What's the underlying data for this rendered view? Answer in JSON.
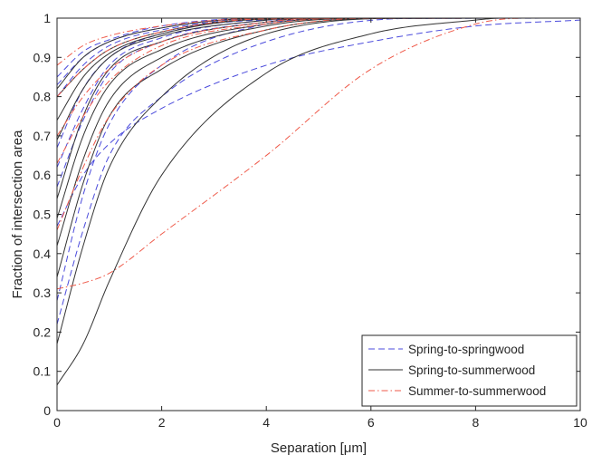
{
  "chart_data": {
    "type": "line",
    "title": "",
    "xlabel": "Separation [μm]",
    "ylabel": "Fraction of intersection area",
    "xlim": [
      0,
      10
    ],
    "ylim": [
      0,
      1
    ],
    "xticks": [
      0,
      2,
      4,
      6,
      8,
      10
    ],
    "yticks": [
      0,
      0.1,
      0.2,
      0.3,
      0.4,
      0.5,
      0.6,
      0.7,
      0.8,
      0.9,
      1
    ],
    "xtick_labels": [
      "0",
      "2",
      "4",
      "6",
      "8",
      "10"
    ],
    "ytick_labels": [
      "0",
      "0.1",
      "0.2",
      "0.3",
      "0.4",
      "0.5",
      "0.6",
      "0.7",
      "0.8",
      "0.9",
      "1"
    ],
    "grid": false,
    "box": true,
    "legend_position": "bottom-right",
    "groups": [
      {
        "name": "Spring-to-springwood",
        "color": "#4b4bdc",
        "line_style": "dashed",
        "curves": [
          {
            "y0": 0.85,
            "y05": 0.915,
            "y1": 0.945,
            "y2": 0.98,
            "y4": 1.0,
            "xend": 3.5
          },
          {
            "y0": 0.83,
            "y05": 0.9,
            "y1": 0.94,
            "y2": 0.975,
            "y4": 1.0,
            "xend": 3.5
          },
          {
            "y0": 0.8,
            "y05": 0.88,
            "y1": 0.93,
            "y2": 0.97,
            "y4": 0.998,
            "xend": 3.5
          },
          {
            "y0": 0.67,
            "y05": 0.82,
            "y1": 0.9,
            "y2": 0.96,
            "y4": 0.995,
            "xend": 4.0
          },
          {
            "y0": 0.62,
            "y05": 0.77,
            "y1": 0.88,
            "y2": 0.95,
            "y4": 0.995,
            "xend": 4.5
          },
          {
            "y0": 0.57,
            "y05": 0.74,
            "y1": 0.86,
            "y2": 0.94,
            "y4": 0.99,
            "xend": 5.0
          },
          {
            "y0": 0.28,
            "y05": 0.55,
            "y1": 0.73,
            "y2": 0.88,
            "y4": 0.985,
            "xend": 5.5
          },
          {
            "y0": 0.22,
            "y05": 0.46,
            "y1": 0.65,
            "y2": 0.8,
            "y4": 0.94,
            "xend": 7.0
          },
          {
            "y0": 0.47,
            "y05": 0.6,
            "y1": 0.68,
            "y2": 0.77,
            "y4": 0.88,
            "y6": 0.94,
            "y8": 0.98,
            "y10": 0.995,
            "xend": 10.0
          }
        ]
      },
      {
        "name": "Spring-to-summerwood",
        "color": "#333333",
        "line_style": "solid",
        "curves": [
          {
            "y0": 0.82,
            "y05": 0.9,
            "y1": 0.94,
            "y2": 0.975,
            "y4": 1.0,
            "xend": 3.5
          },
          {
            "y0": 0.8,
            "y05": 0.87,
            "y1": 0.92,
            "y2": 0.965,
            "y4": 0.998,
            "xend": 4.0
          },
          {
            "y0": 0.74,
            "y05": 0.85,
            "y1": 0.91,
            "y2": 0.96,
            "y4": 0.997,
            "xend": 4.0
          },
          {
            "y0": 0.69,
            "y05": 0.82,
            "y1": 0.9,
            "y2": 0.955,
            "y4": 0.995,
            "xend": 4.5
          },
          {
            "y0": 0.54,
            "y05": 0.75,
            "y1": 0.87,
            "y2": 0.94,
            "y4": 0.99,
            "xend": 5.0
          },
          {
            "y0": 0.49,
            "y05": 0.7,
            "y1": 0.83,
            "y2": 0.92,
            "y4": 0.985,
            "xend": 5.5
          },
          {
            "y0": 0.42,
            "y05": 0.64,
            "y1": 0.79,
            "y2": 0.9,
            "y4": 0.98,
            "xend": 6.0
          },
          {
            "y0": 0.34,
            "y05": 0.58,
            "y1": 0.75,
            "y2": 0.87,
            "y4": 0.97,
            "xend": 6.5
          },
          {
            "y0": 0.17,
            "y05": 0.42,
            "y1": 0.62,
            "y2": 0.8,
            "y4": 0.96,
            "xend": 7.0
          },
          {
            "y0": 0.065,
            "y05": 0.17,
            "y1": 0.33,
            "y2": 0.6,
            "y4": 0.86,
            "y6": 0.96,
            "y8": 0.995,
            "xend": 8.5
          }
        ]
      },
      {
        "name": "Summer-to-summerwood",
        "color": "#ef5a4a",
        "line_style": "dashdot",
        "curves": [
          {
            "y0": 0.88,
            "y05": 0.93,
            "y1": 0.955,
            "y2": 0.98,
            "y4": 1.0,
            "xend": 3.5
          },
          {
            "y0": 0.8,
            "y05": 0.87,
            "y1": 0.92,
            "y2": 0.965,
            "y4": 0.998,
            "xend": 4.0
          },
          {
            "y0": 0.7,
            "y05": 0.8,
            "y1": 0.87,
            "y2": 0.94,
            "y4": 0.99,
            "xend": 5.0
          },
          {
            "y0": 0.63,
            "y05": 0.75,
            "y1": 0.84,
            "y2": 0.93,
            "y4": 0.985,
            "xend": 5.5
          },
          {
            "y0": 0.46,
            "y05": 0.62,
            "y1": 0.75,
            "y2": 0.88,
            "y4": 0.97,
            "xend": 6.0
          },
          {
            "y0": 0.31,
            "y05": 0.325,
            "y1": 0.35,
            "y2": 0.45,
            "y4": 0.65,
            "y6": 0.87,
            "y8": 0.985,
            "xend": 9.0
          }
        ]
      }
    ]
  },
  "legend": {
    "items": [
      {
        "label": "Spring-to-springwood",
        "color": "#4b4bdc",
        "dash": "dashed"
      },
      {
        "label": "Spring-to-summerwood",
        "color": "#333333",
        "dash": "solid"
      },
      {
        "label": "Summer-to-summerwood",
        "color": "#ef5a4a",
        "dash": "dashdot"
      }
    ]
  }
}
